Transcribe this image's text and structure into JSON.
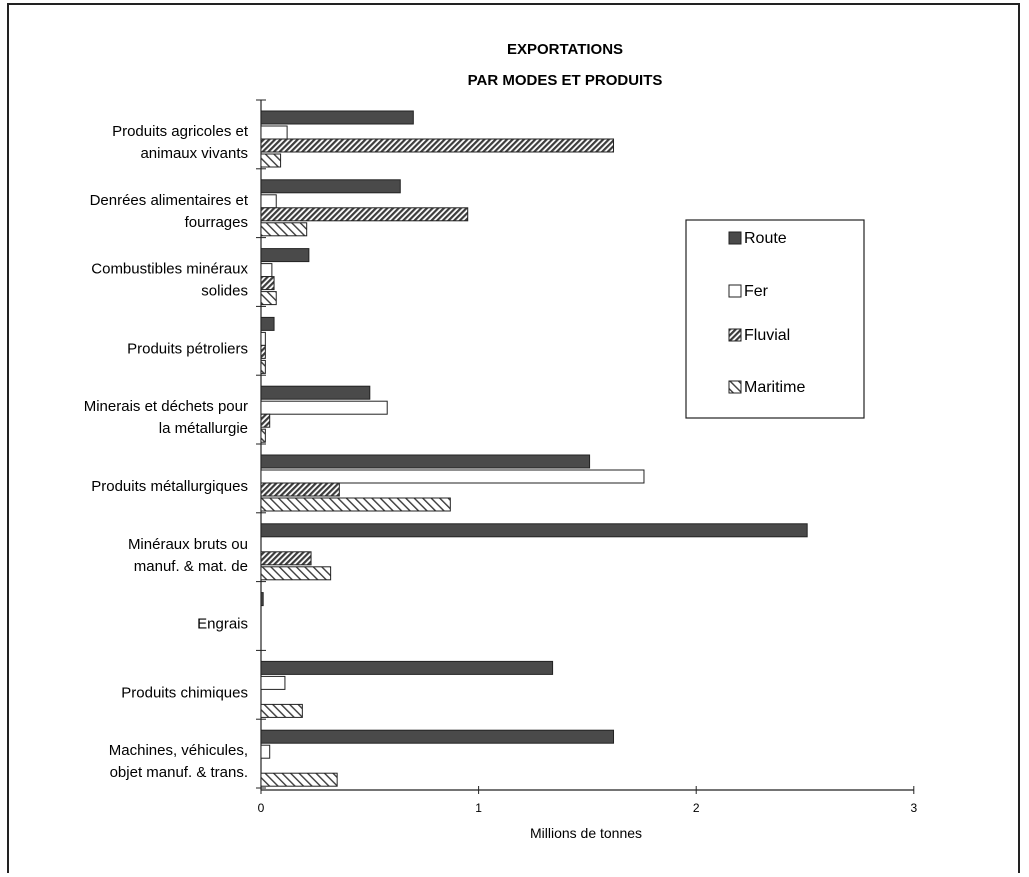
{
  "chart_data": {
    "type": "bar",
    "orientation": "horizontal",
    "title_lines": [
      "EXPORTATIONS",
      "PAR MODES ET PRODUITS"
    ],
    "xlabel": "Millions de tonnes",
    "ylabel": "",
    "xlim": [
      0,
      3
    ],
    "xticks": [
      "0",
      "1",
      "2",
      "3"
    ],
    "grid": false,
    "legend_position": "right",
    "categories": [
      [
        "Produits agricoles et",
        "animaux vivants"
      ],
      [
        "Denrées alimentaires et",
        "fourrages"
      ],
      [
        "Combustibles minéraux",
        "solides"
      ],
      [
        "Produits pétroliers"
      ],
      [
        "Minerais et déchets pour",
        "la métallurgie"
      ],
      [
        "Produits métallurgiques"
      ],
      [
        "Minéraux bruts ou",
        "manuf. & mat. de"
      ],
      [
        "Engrais"
      ],
      [
        "Produits chimiques"
      ],
      [
        "Machines, véhicules,",
        "objet manuf. & trans."
      ]
    ],
    "series": [
      {
        "name": "Route",
        "style": "solid",
        "color": "#4a4a4a",
        "values": [
          0.7,
          0.64,
          0.22,
          0.06,
          0.5,
          1.51,
          2.51,
          0.01,
          1.34,
          1.62
        ]
      },
      {
        "name": "Fer",
        "style": "hollow",
        "color": "#ffffff",
        "values": [
          0.12,
          0.07,
          0.05,
          0.02,
          0.58,
          1.76,
          0.0,
          0.0,
          0.11,
          0.04
        ]
      },
      {
        "name": "Fluvial",
        "style": "dense-hatch",
        "color": "#555555",
        "values": [
          1.62,
          0.95,
          0.06,
          0.02,
          0.04,
          0.36,
          0.23,
          0.0,
          0.0,
          0.0
        ]
      },
      {
        "name": "Maritime",
        "style": "light-hatch",
        "color": "#555555",
        "values": [
          0.09,
          0.21,
          0.07,
          0.02,
          0.02,
          0.87,
          0.32,
          0.0,
          0.19,
          0.35
        ]
      }
    ]
  }
}
